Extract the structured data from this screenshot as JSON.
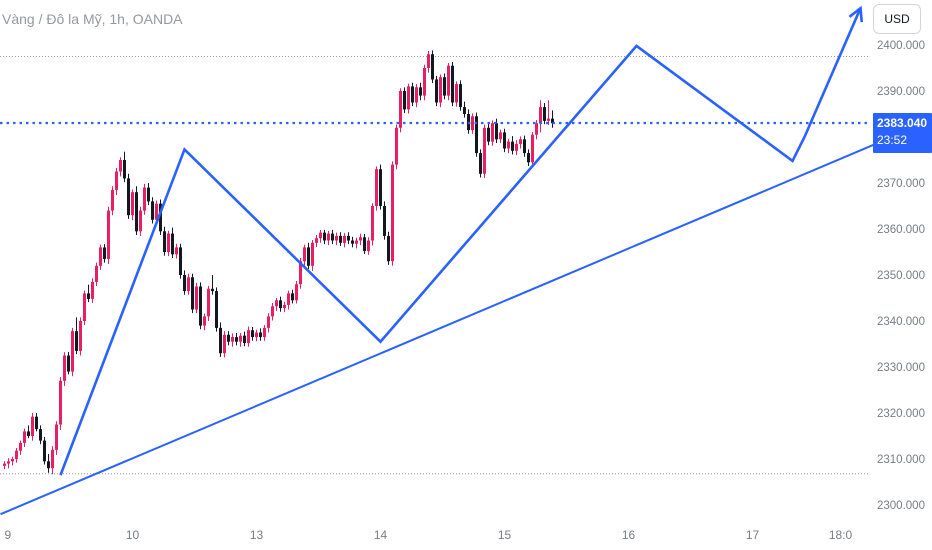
{
  "header": {
    "title": "Vàng / Đô la Mỹ, 1h, OANDA",
    "currency_button": "USD"
  },
  "colors": {
    "up": "#e91e63",
    "down": "#131722",
    "drawing": "#2962ff",
    "price_line": "#2962ff",
    "grid_dotted": "#9598a1",
    "axis_text": "#787b86"
  },
  "chart_data": {
    "type": "candlestick",
    "title": "Vàng / Đô la Mỹ, 1h, OANDA",
    "ylim": [
      2297,
      2402
    ],
    "y_ticks": [
      "2300.000",
      "2310.000",
      "2320.000",
      "2330.000",
      "2340.000",
      "2350.000",
      "2360.000",
      "2370.000",
      "2380.000",
      "2390.000",
      "2400.000"
    ],
    "x_ticks": [
      {
        "label": "9",
        "bar": 0
      },
      {
        "label": "10",
        "bar": 32
      },
      {
        "label": "13",
        "bar": 63
      },
      {
        "label": "14",
        "bar": 94
      },
      {
        "label": "15",
        "bar": 125
      },
      {
        "label": "16",
        "bar": 156
      },
      {
        "label": "17",
        "bar": 187
      },
      {
        "label": "18:0",
        "bar": 209
      }
    ],
    "current_price": "2383.040",
    "countdown": "23:52",
    "horizontal_levels": [
      2397.5,
      2306.8
    ],
    "candles": [
      [
        2308.5,
        2309.5,
        2307.8,
        2309.0
      ],
      [
        2309.0,
        2310.2,
        2308.0,
        2309.5
      ],
      [
        2309.5,
        2310.5,
        2308.6,
        2310.0
      ],
      [
        2310.0,
        2312.4,
        2309.2,
        2311.8
      ],
      [
        2311.8,
        2314.0,
        2310.9,
        2313.5
      ],
      [
        2313.5,
        2316.6,
        2312.6,
        2316.0
      ],
      [
        2316.0,
        2317.3,
        2314.5,
        2315.0
      ],
      [
        2315.0,
        2320.0,
        2314.0,
        2319.2
      ],
      [
        2319.2,
        2320.0,
        2316.0,
        2316.5
      ],
      [
        2316.5,
        2317.3,
        2313.2,
        2314.0
      ],
      [
        2314.0,
        2314.8,
        2308.8,
        2309.5
      ],
      [
        2309.5,
        2311.1,
        2307.0,
        2308.0
      ],
      [
        2308.0,
        2312.8,
        2306.7,
        2312.0
      ],
      [
        2312.0,
        2318.2,
        2310.9,
        2317.5
      ],
      [
        2317.5,
        2327.8,
        2316.3,
        2327.0
      ],
      [
        2327.0,
        2333.2,
        2325.9,
        2332.5
      ],
      [
        2332.5,
        2333.3,
        2328.4,
        2329.0
      ],
      [
        2329.0,
        2338.5,
        2328.0,
        2337.8
      ],
      [
        2337.8,
        2340.8,
        2332.8,
        2333.5
      ],
      [
        2333.5,
        2340.8,
        2332.5,
        2340.0
      ],
      [
        2340.0,
        2346.6,
        2339.1,
        2346.0
      ],
      [
        2346.0,
        2347.9,
        2344.1,
        2344.8
      ],
      [
        2344.8,
        2349.3,
        2343.9,
        2348.5
      ],
      [
        2348.5,
        2352.7,
        2347.6,
        2352.0
      ],
      [
        2352.0,
        2356.6,
        2351.1,
        2356.0
      ],
      [
        2356.0,
        2356.7,
        2352.7,
        2353.5
      ],
      [
        2353.5,
        2364.8,
        2352.4,
        2364.0
      ],
      [
        2364.0,
        2369.3,
        2363.0,
        2368.5
      ],
      [
        2368.5,
        2373.3,
        2367.4,
        2372.5
      ],
      [
        2372.5,
        2375.6,
        2371.4,
        2375.0
      ],
      [
        2375.0,
        2376.8,
        2370.2,
        2371.0
      ],
      [
        2371.0,
        2372.0,
        2362.2,
        2363.0
      ],
      [
        2363.0,
        2368.6,
        2361.9,
        2368.0
      ],
      [
        2368.0,
        2369.3,
        2358.7,
        2359.5
      ],
      [
        2359.5,
        2364.8,
        2358.5,
        2364.0
      ],
      [
        2364.0,
        2369.8,
        2363.1,
        2369.0
      ],
      [
        2369.0,
        2370.0,
        2365.2,
        2366.0
      ],
      [
        2366.0,
        2366.9,
        2361.2,
        2362.0
      ],
      [
        2362.0,
        2366.2,
        2361.0,
        2365.5
      ],
      [
        2365.5,
        2366.4,
        2358.7,
        2359.5
      ],
      [
        2359.5,
        2360.5,
        2354.2,
        2355.0
      ],
      [
        2355.0,
        2359.6,
        2354.1,
        2359.0
      ],
      [
        2359.0,
        2360.3,
        2353.7,
        2354.5
      ],
      [
        2354.5,
        2356.8,
        2353.6,
        2356.0
      ],
      [
        2356.0,
        2356.8,
        2349.2,
        2350.0
      ],
      [
        2350.0,
        2351.0,
        2345.7,
        2346.5
      ],
      [
        2346.5,
        2350.3,
        2345.7,
        2349.5
      ],
      [
        2349.5,
        2350.3,
        2341.7,
        2342.5
      ],
      [
        2342.5,
        2348.3,
        2341.7,
        2347.5
      ],
      [
        2347.5,
        2348.4,
        2338.2,
        2339.0
      ],
      [
        2339.0,
        2341.6,
        2338.0,
        2341.0
      ],
      [
        2341.0,
        2347.6,
        2340.0,
        2347.0
      ],
      [
        2347.0,
        2350.0,
        2345.7,
        2346.5
      ],
      [
        2346.5,
        2347.3,
        2337.7,
        2338.5
      ],
      [
        2338.5,
        2339.7,
        2332.2,
        2333.0
      ],
      [
        2333.0,
        2337.8,
        2332.1,
        2337.0
      ],
      [
        2337.0,
        2337.8,
        2334.7,
        2335.5
      ],
      [
        2335.5,
        2337.3,
        2334.4,
        2336.5
      ],
      [
        2336.5,
        2337.4,
        2334.7,
        2335.5
      ],
      [
        2335.5,
        2337.4,
        2334.4,
        2336.8
      ],
      [
        2336.8,
        2337.7,
        2334.5,
        2335.2
      ],
      [
        2335.2,
        2338.8,
        2334.4,
        2338.0
      ],
      [
        2338.0,
        2338.7,
        2335.7,
        2336.5
      ],
      [
        2336.5,
        2338.1,
        2335.6,
        2337.5
      ],
      [
        2337.5,
        2338.4,
        2335.7,
        2336.5
      ],
      [
        2336.5,
        2339.1,
        2335.7,
        2338.5
      ],
      [
        2338.5,
        2341.7,
        2337.5,
        2341.0
      ],
      [
        2341.0,
        2343.9,
        2340.1,
        2343.2
      ],
      [
        2343.2,
        2345.0,
        2342.2,
        2344.5
      ],
      [
        2344.5,
        2345.3,
        2342.0,
        2342.8
      ],
      [
        2342.8,
        2344.2,
        2341.9,
        2343.5
      ],
      [
        2343.5,
        2346.6,
        2342.5,
        2346.0
      ],
      [
        2346.0,
        2346.8,
        2343.8,
        2344.5
      ],
      [
        2344.5,
        2348.7,
        2343.8,
        2348.0
      ],
      [
        2348.0,
        2353.7,
        2347.0,
        2353.0
      ],
      [
        2353.0,
        2356.6,
        2352.0,
        2356.0
      ],
      [
        2356.0,
        2357.0,
        2351.3,
        2352.0
      ],
      [
        2352.0,
        2357.6,
        2350.9,
        2357.0
      ],
      [
        2357.0,
        2358.7,
        2356.1,
        2358.0
      ],
      [
        2358.0,
        2359.8,
        2357.0,
        2359.2
      ],
      [
        2359.2,
        2359.8,
        2356.7,
        2357.5
      ],
      [
        2357.5,
        2359.6,
        2356.5,
        2359.0
      ],
      [
        2359.0,
        2359.8,
        2356.7,
        2357.5
      ],
      [
        2357.5,
        2359.2,
        2356.5,
        2358.5
      ],
      [
        2358.5,
        2359.3,
        2356.3,
        2357.0
      ],
      [
        2357.0,
        2359.1,
        2356.0,
        2358.5
      ],
      [
        2358.5,
        2359.3,
        2356.7,
        2357.5
      ],
      [
        2357.5,
        2358.3,
        2356.0,
        2356.8
      ],
      [
        2356.8,
        2358.1,
        2355.8,
        2357.5
      ],
      [
        2357.5,
        2359.0,
        2356.5,
        2358.2
      ],
      [
        2358.2,
        2358.9,
        2354.6,
        2355.2
      ],
      [
        2355.2,
        2358.2,
        2354.4,
        2357.5
      ],
      [
        2357.5,
        2365.6,
        2356.4,
        2365.0
      ],
      [
        2365.0,
        2373.6,
        2364.0,
        2373.0
      ],
      [
        2373.0,
        2374.0,
        2364.2,
        2365.0
      ],
      [
        2365.0,
        2366.0,
        2357.7,
        2358.5
      ],
      [
        2358.5,
        2359.4,
        2352.2,
        2353.0
      ],
      [
        2353.0,
        2374.7,
        2352.0,
        2374.0
      ],
      [
        2374.0,
        2382.7,
        2373.0,
        2382.0
      ],
      [
        2382.0,
        2390.6,
        2381.0,
        2390.0
      ],
      [
        2390.0,
        2390.8,
        2385.2,
        2386.0
      ],
      [
        2386.0,
        2391.6,
        2385.1,
        2391.0
      ],
      [
        2391.0,
        2391.8,
        2386.7,
        2387.5
      ],
      [
        2387.5,
        2391.5,
        2386.5,
        2390.8
      ],
      [
        2390.8,
        2391.8,
        2388.0,
        2389.0
      ],
      [
        2389.0,
        2395.7,
        2388.0,
        2395.0
      ],
      [
        2395.0,
        2398.7,
        2394.0,
        2398.0
      ],
      [
        2398.0,
        2398.8,
        2391.7,
        2392.5
      ],
      [
        2392.5,
        2393.3,
        2386.7,
        2387.5
      ],
      [
        2387.5,
        2393.6,
        2386.5,
        2393.0
      ],
      [
        2393.0,
        2393.8,
        2388.2,
        2389.0
      ],
      [
        2389.0,
        2396.1,
        2388.0,
        2395.5
      ],
      [
        2395.5,
        2396.3,
        2386.7,
        2387.5
      ],
      [
        2387.5,
        2392.1,
        2386.6,
        2391.5
      ],
      [
        2391.5,
        2392.3,
        2385.7,
        2386.5
      ],
      [
        2386.5,
        2387.7,
        2384.2,
        2385.0
      ],
      [
        2385.0,
        2386.0,
        2380.7,
        2381.5
      ],
      [
        2381.5,
        2385.1,
        2380.7,
        2384.5
      ],
      [
        2384.5,
        2385.3,
        2375.7,
        2376.5
      ],
      [
        2376.5,
        2377.3,
        2371.2,
        2372.0
      ],
      [
        2372.0,
        2382.7,
        2371.1,
        2382.0
      ],
      [
        2382.0,
        2383.0,
        2378.2,
        2379.0
      ],
      [
        2379.0,
        2383.6,
        2378.1,
        2383.0
      ],
      [
        2383.0,
        2384.0,
        2378.7,
        2379.5
      ],
      [
        2379.5,
        2381.6,
        2378.7,
        2381.0
      ],
      [
        2381.0,
        2381.8,
        2376.7,
        2377.5
      ],
      [
        2377.5,
        2379.6,
        2376.5,
        2379.0
      ],
      [
        2379.0,
        2380.2,
        2376.2,
        2377.0
      ],
      [
        2377.0,
        2379.3,
        2376.1,
        2378.5
      ],
      [
        2378.5,
        2380.1,
        2377.5,
        2379.5
      ],
      [
        2379.5,
        2380.3,
        2375.7,
        2376.5
      ],
      [
        2376.5,
        2377.3,
        2373.7,
        2374.5
      ],
      [
        2374.5,
        2381.1,
        2373.5,
        2380.5
      ],
      [
        2380.5,
        2383.7,
        2379.5,
        2383.0
      ],
      [
        2383.0,
        2388.0,
        2381.0,
        2386.5
      ],
      [
        2386.5,
        2387.4,
        2382.8,
        2383.5
      ],
      [
        2383.5,
        2388.0,
        2382.6,
        2384.0
      ],
      [
        2384.0,
        2385.8,
        2382.0,
        2383.0
      ]
    ]
  },
  "drawings": {
    "trendline": [
      [
        -1,
        2298.0
      ],
      [
        220,
        2379.3
      ]
    ],
    "pattern": [
      [
        14,
        2306.5
      ],
      [
        45,
        2377.3
      ],
      [
        94,
        2335.5
      ],
      [
        158,
        2399.8
      ],
      [
        197,
        2374.8
      ],
      [
        200,
        2380.0
      ]
    ],
    "arrow": [
      [
        200,
        2380.0
      ],
      [
        214,
        2408.0
      ]
    ]
  }
}
